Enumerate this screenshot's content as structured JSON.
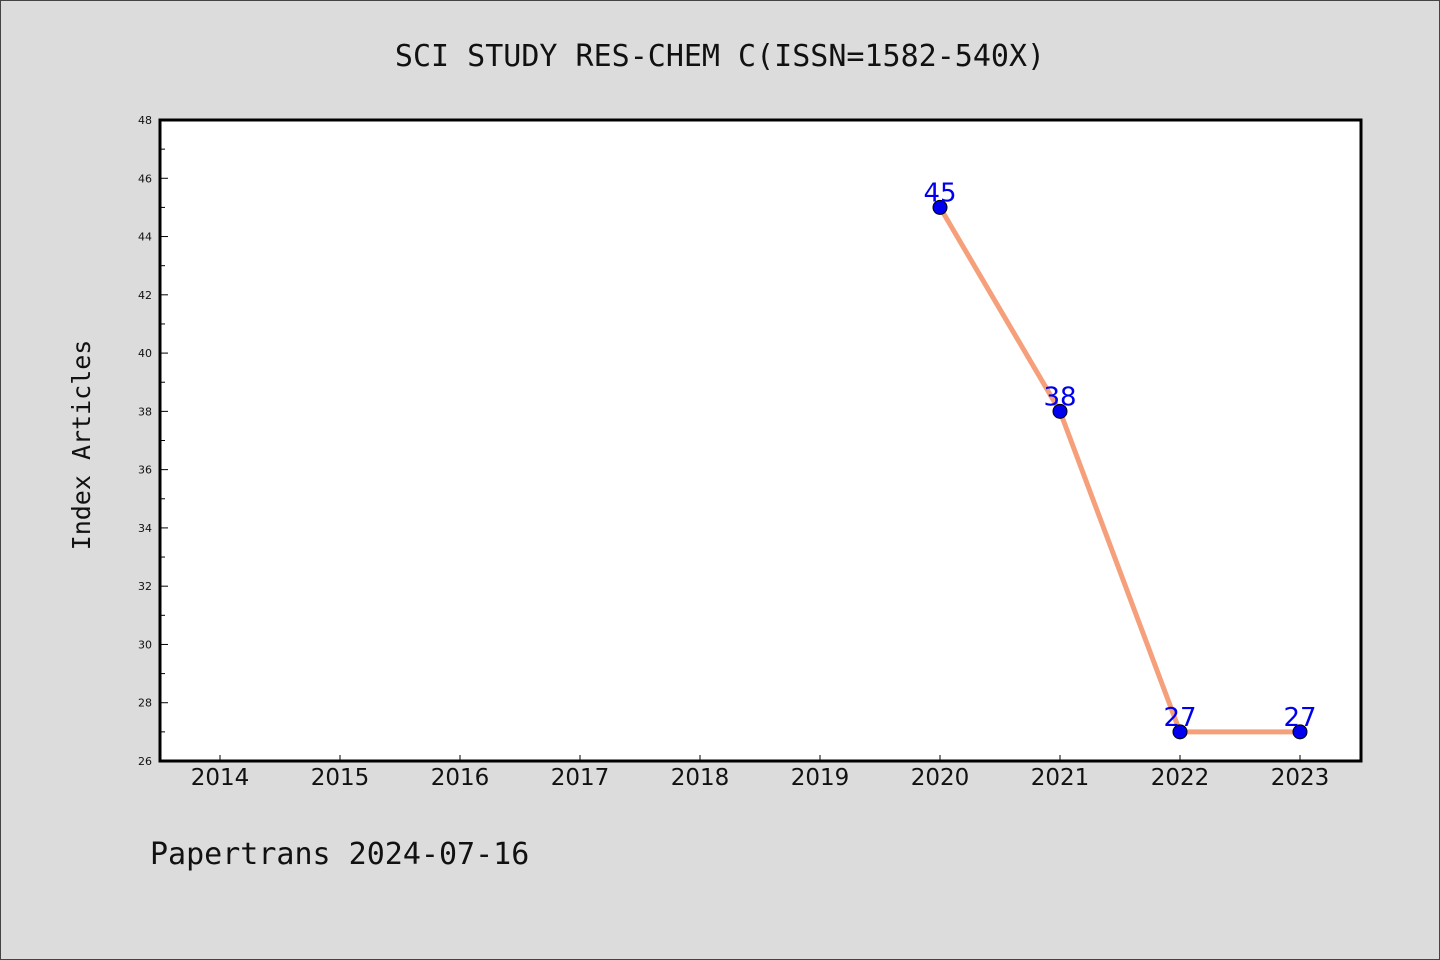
{
  "chart_data": {
    "type": "line",
    "title": "SCI STUDY RES-CHEM C(ISSN=1582-540X)",
    "ylabel": "Index Articles",
    "xlabel": "",
    "categories": [
      "2014",
      "2015",
      "2016",
      "2017",
      "2018",
      "2019",
      "2020",
      "2021",
      "2022",
      "2023"
    ],
    "ylim": [
      26,
      48
    ],
    "yticks": [
      26,
      28,
      30,
      32,
      34,
      36,
      38,
      40,
      42,
      44,
      46,
      48
    ],
    "series": [
      {
        "x": [
          "2020",
          "2021",
          "2022",
          "2023"
        ],
        "values": [
          45,
          38,
          27,
          27
        ]
      }
    ],
    "grid": false,
    "footer": "Papertrans 2024-07-16",
    "colors": {
      "background": "#dcdcdc",
      "plot_area": "#ffffff",
      "line": "#f5a07a",
      "marker": "#0000ee",
      "data_label": "#0000ee"
    }
  }
}
